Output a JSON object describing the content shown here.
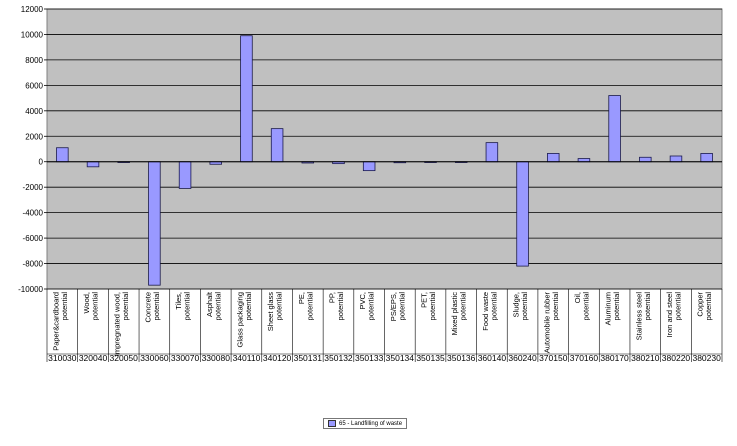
{
  "chart_data": {
    "type": "bar",
    "title": "",
    "xlabel": "",
    "ylabel": "",
    "ylim": [
      -10000,
      12000
    ],
    "yticks": [
      12000,
      10000,
      8000,
      6000,
      4000,
      2000,
      0,
      -2000,
      -4000,
      -6000,
      -8000,
      -10000
    ],
    "grid": true,
    "legend_position": "bottom-center",
    "bar_color": "#9999ff",
    "plot_background": "#c0c0c0",
    "categories": [
      "Paper&cardboard potential",
      "Wood, potential",
      "Impregnated wood, potential",
      "Concrete potential",
      "Tiles, potential",
      "Asphalt potential",
      "Glass packaging potential",
      "Sheet glass potential",
      "PE, potential",
      "PP, potential",
      "PVC, potential",
      "PS/EPS, potential",
      "PET, potential",
      "Mixed plastic potential",
      "Food waste potential",
      "Sludge, potential",
      "Automobile rubber potential",
      "Oil, potential",
      "Aluminum potential",
      "Stainless steel potential",
      "Iron and steel potential",
      "Copper potential"
    ],
    "codes": [
      "310030",
      "320040",
      "320050",
      "330060",
      "330070",
      "330080",
      "340110",
      "340120",
      "350131",
      "350132",
      "350133",
      "350134",
      "350135",
      "350136",
      "360140",
      "360240",
      "370150",
      "370160",
      "380170",
      "380210",
      "380220",
      "380230"
    ],
    "series": [
      {
        "name": "65 - Landfilling of waste",
        "values": [
          1100,
          -400,
          0,
          -9700,
          -2100,
          -200,
          9900,
          2600,
          -100,
          -150,
          -700,
          -80,
          -60,
          0,
          1500,
          -8200,
          650,
          250,
          5200,
          350,
          450,
          650
        ]
      }
    ]
  }
}
